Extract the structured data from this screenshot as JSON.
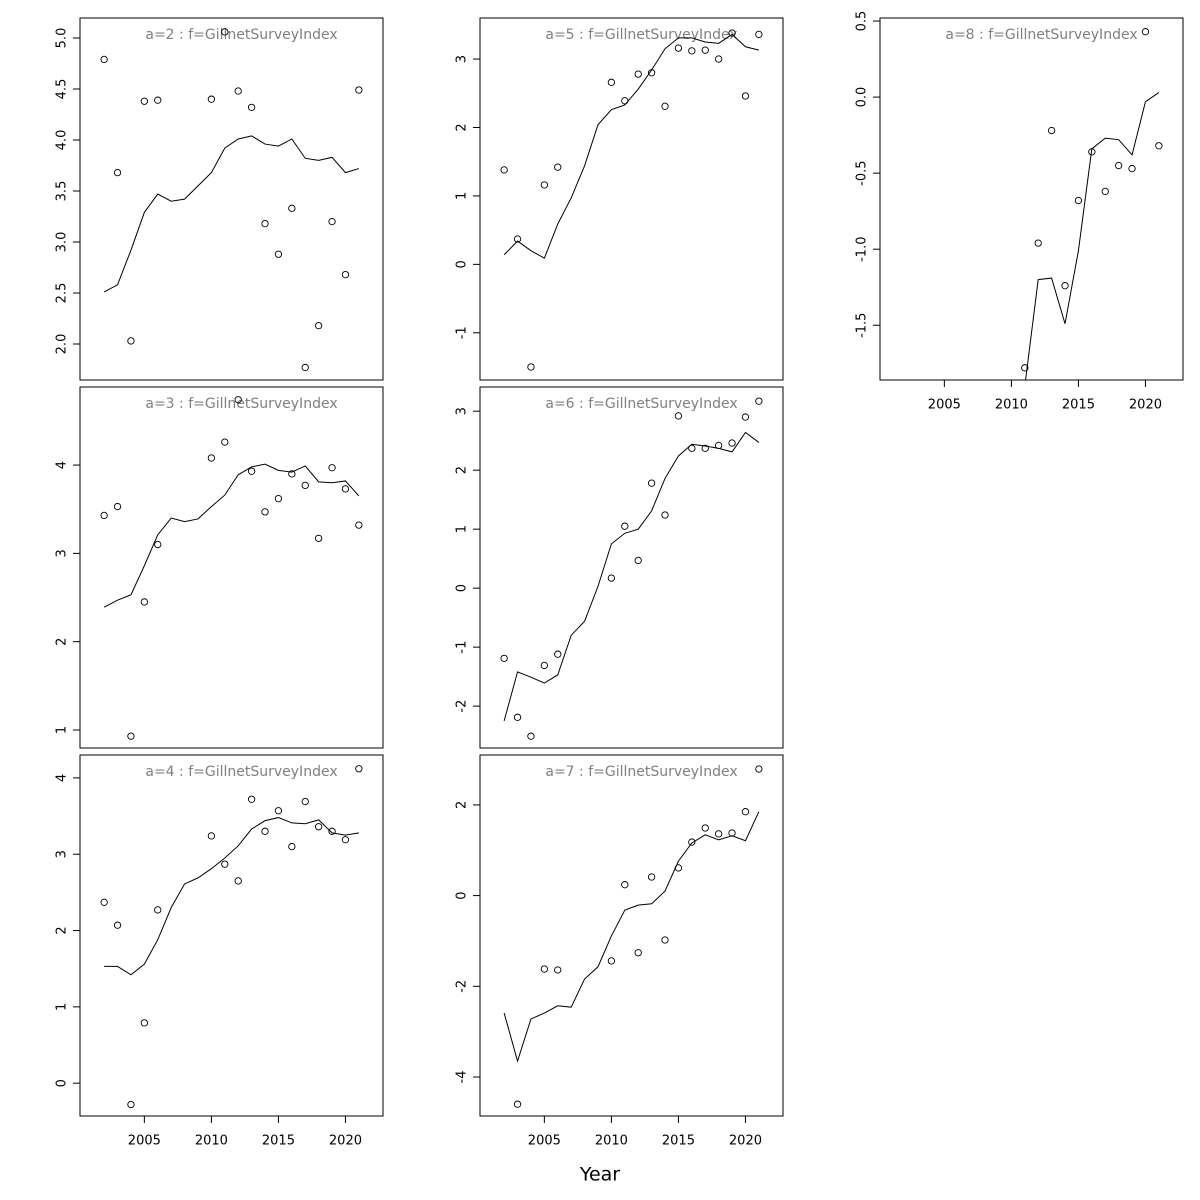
{
  "xlabel": "Year",
  "chart_data": [
    {
      "type": "line",
      "title": "a=2 : f=GillnetSurveyIndex",
      "x": [
        2002,
        2003,
        2004,
        2005,
        2006,
        2007,
        2008,
        2009,
        2010,
        2011,
        2012,
        2013,
        2014,
        2015,
        2016,
        2017,
        2018,
        2019,
        2020,
        2021
      ],
      "points": [
        4.79,
        3.68,
        2.03,
        4.38,
        4.39,
        null,
        null,
        null,
        4.4,
        5.06,
        4.48,
        4.32,
        3.18,
        2.88,
        3.33,
        1.77,
        2.18,
        3.2,
        2.68,
        4.49
      ],
      "line": [
        2.51,
        2.58,
        2.92,
        3.29,
        3.47,
        3.4,
        3.42,
        3.55,
        3.68,
        3.92,
        4.01,
        4.04,
        3.96,
        3.94,
        4.01,
        3.82,
        3.8,
        3.83,
        3.68,
        3.72
      ],
      "xlim": [
        2000.2,
        2022.8
      ],
      "ylim": [
        1.647,
        5.196
      ],
      "yticks": [
        {
          "value": 2,
          "label": "2.0"
        },
        2.5,
        {
          "value": 3,
          "label": "3.0"
        },
        3.5,
        {
          "value": 4,
          "label": "4.0"
        },
        4.5,
        {
          "value": 5,
          "label": "5.0"
        }
      ]
    },
    {
      "type": "line",
      "title": "a=3 : f=GillnetSurveyIndex",
      "x": [
        2002,
        2003,
        2004,
        2005,
        2006,
        2007,
        2008,
        2009,
        2010,
        2011,
        2012,
        2013,
        2014,
        2015,
        2016,
        2017,
        2018,
        2019,
        2020,
        2021
      ],
      "points": [
        3.43,
        3.53,
        0.93,
        2.45,
        3.1,
        null,
        null,
        null,
        4.08,
        4.26,
        4.74,
        3.93,
        3.47,
        3.62,
        3.9,
        3.77,
        3.17,
        3.97,
        3.73,
        3.32
      ],
      "line": [
        2.39,
        2.47,
        2.53,
        2.86,
        3.21,
        3.4,
        3.36,
        3.39,
        3.53,
        3.66,
        3.89,
        3.98,
        4.01,
        3.94,
        3.92,
        3.99,
        3.81,
        3.8,
        3.82,
        3.65
      ],
      "xlim": [
        2000.2,
        2022.8
      ],
      "ylim": [
        0.796,
        4.884
      ],
      "yticks": [
        1,
        2,
        3,
        4
      ]
    },
    {
      "type": "line",
      "title": "a=4 : f=GillnetSurveyIndex",
      "x": [
        2002,
        2003,
        2004,
        2005,
        2006,
        2007,
        2008,
        2009,
        2010,
        2011,
        2012,
        2013,
        2014,
        2015,
        2016,
        2017,
        2018,
        2019,
        2020,
        2021
      ],
      "points": [
        2.37,
        2.07,
        -0.28,
        0.79,
        2.27,
        null,
        null,
        null,
        3.24,
        2.87,
        2.65,
        3.72,
        3.3,
        3.57,
        3.1,
        3.69,
        3.36,
        3.3,
        3.19,
        4.12
      ],
      "line": [
        1.53,
        1.53,
        1.42,
        1.56,
        1.88,
        2.3,
        2.61,
        2.69,
        2.81,
        2.95,
        3.11,
        3.33,
        3.44,
        3.48,
        3.41,
        3.4,
        3.45,
        3.28,
        3.25,
        3.28
      ],
      "xlim": [
        2000.2,
        2022.8
      ],
      "ylim": [
        -0.43,
        4.3
      ],
      "yticks": [
        0,
        1,
        2,
        3,
        4
      ],
      "xticks": [
        2005,
        2010,
        2015,
        2020
      ]
    },
    {
      "type": "line",
      "title": "a=5 : f=GillnetSurveyIndex",
      "x": [
        2002,
        2003,
        2004,
        2005,
        2006,
        2007,
        2008,
        2009,
        2010,
        2011,
        2012,
        2013,
        2014,
        2015,
        2016,
        2017,
        2018,
        2019,
        2020,
        2021
      ],
      "points": [
        1.38,
        0.37,
        -1.5,
        1.16,
        1.42,
        null,
        null,
        null,
        2.66,
        2.39,
        2.78,
        2.8,
        2.31,
        3.16,
        3.12,
        3.13,
        3.0,
        3.38,
        2.46,
        3.36
      ],
      "line": [
        0.14,
        0.34,
        0.2,
        0.09,
        0.59,
        0.97,
        1.44,
        2.04,
        2.26,
        2.33,
        2.56,
        2.84,
        3.15,
        3.31,
        3.31,
        3.25,
        3.23,
        3.36,
        3.18,
        3.13
      ],
      "xlim": [
        2000.2,
        2022.8
      ],
      "ylim": [
        -1.69,
        3.6
      ],
      "yticks": [
        -1,
        0,
        1,
        2,
        3
      ]
    },
    {
      "type": "line",
      "title": "a=6 : f=GillnetSurveyIndex",
      "x": [
        2002,
        2003,
        2004,
        2005,
        2006,
        2007,
        2008,
        2009,
        2010,
        2011,
        2012,
        2013,
        2014,
        2015,
        2016,
        2017,
        2018,
        2019,
        2020,
        2021
      ],
      "points": [
        -1.19,
        -2.19,
        -2.51,
        -1.31,
        -1.12,
        null,
        null,
        null,
        0.17,
        1.05,
        0.47,
        1.78,
        1.24,
        2.92,
        2.37,
        2.37,
        2.42,
        2.46,
        2.9,
        3.17
      ],
      "line": [
        -2.25,
        -1.42,
        -1.51,
        -1.61,
        -1.47,
        -0.8,
        -0.56,
        0.03,
        0.75,
        0.93,
        1.0,
        1.31,
        1.86,
        2.24,
        2.44,
        2.41,
        2.37,
        2.31,
        2.64,
        2.47
      ],
      "xlim": [
        2000.2,
        2022.8
      ],
      "ylim": [
        -2.71,
        3.41
      ],
      "yticks": [
        -2,
        -1,
        0,
        1,
        2,
        3
      ]
    },
    {
      "type": "line",
      "title": "a=7 : f=GillnetSurveyIndex",
      "x": [
        2002,
        2003,
        2004,
        2005,
        2006,
        2007,
        2008,
        2009,
        2010,
        2011,
        2012,
        2013,
        2014,
        2015,
        2016,
        2017,
        2018,
        2019,
        2020,
        2021
      ],
      "points": [
        null,
        -4.6,
        null,
        -1.62,
        -1.64,
        null,
        null,
        null,
        -1.44,
        0.24,
        -1.26,
        0.41,
        -0.98,
        0.61,
        1.18,
        1.49,
        1.36,
        1.38,
        1.85,
        2.79
      ],
      "line": [
        -2.59,
        -3.65,
        -2.72,
        -2.59,
        -2.43,
        -2.46,
        -1.84,
        -1.57,
        -0.89,
        -0.32,
        -0.21,
        -0.18,
        0.1,
        0.76,
        1.16,
        1.34,
        1.23,
        1.32,
        1.21,
        1.85
      ],
      "xlim": [
        2000.2,
        2022.8
      ],
      "ylim": [
        -4.86,
        3.1
      ],
      "yticks": [
        -4,
        -2,
        0,
        2
      ],
      "xticks": [
        2005,
        2010,
        2015,
        2020
      ]
    },
    {
      "type": "line",
      "title": "a=8 : f=GillnetSurveyIndex",
      "x": [
        2002,
        2003,
        2004,
        2005,
        2006,
        2007,
        2008,
        2009,
        2010,
        2011,
        2012,
        2013,
        2014,
        2015,
        2016,
        2017,
        2018,
        2019,
        2020,
        2021
      ],
      "points": [
        null,
        null,
        null,
        null,
        null,
        null,
        null,
        null,
        null,
        -1.78,
        -0.96,
        -0.22,
        -1.24,
        -0.68,
        -0.36,
        -0.62,
        -0.45,
        -0.47,
        0.43,
        -0.32
      ],
      "line": [
        null,
        null,
        null,
        null,
        null,
        null,
        null,
        null,
        null,
        -1.9,
        -1.2,
        -1.19,
        -1.49,
        -1.01,
        -0.34,
        -0.27,
        -0.28,
        -0.38,
        -0.03,
        0.03
      ],
      "xlim": [
        2000.2,
        2022.8
      ],
      "ylim": [
        -1.86,
        0.52
      ],
      "yticks": [
        -1.5,
        {
          "value": -1,
          "label": "-1.0"
        },
        -0.5,
        {
          "value": 0,
          "label": "0.0"
        },
        0.5
      ],
      "xticks": [
        2005,
        2010,
        2015,
        2020
      ]
    }
  ]
}
